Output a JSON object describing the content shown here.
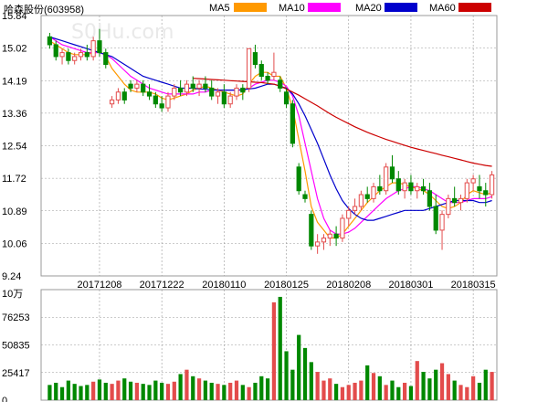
{
  "header": {
    "stock_name": "哈森股份",
    "stock_code": "(603958)",
    "watermark": "S0Hu.com"
  },
  "legend": [
    {
      "label": "MA5",
      "color": "#ff9900"
    },
    {
      "label": "MA10",
      "color": "#ff00ff"
    },
    {
      "label": "MA20",
      "color": "#0000cc"
    },
    {
      "label": "MA60",
      "color": "#cc0000"
    }
  ],
  "colors": {
    "up": "#e34c4c",
    "down": "#008800",
    "grid": "#999999"
  },
  "chart_data": [
    {
      "type": "candlestick",
      "title": "哈森股份(603958)",
      "y_ticks": [
        "15.84",
        "15.02",
        "14.19",
        "13.36",
        "12.54",
        "11.72",
        "10.89",
        "10.06",
        "9.24"
      ],
      "ylim": [
        9.24,
        15.84
      ],
      "x_labels": [
        "20171208",
        "20171222",
        "20180110",
        "20180125",
        "20180208",
        "20180301",
        "20180315"
      ],
      "x_label_index": [
        8,
        18,
        28,
        38,
        48,
        58,
        68
      ],
      "ohlc": [
        [
          15.3,
          15.4,
          15.0,
          15.1
        ],
        [
          15.1,
          15.2,
          14.7,
          14.8
        ],
        [
          14.8,
          15.0,
          14.6,
          14.9
        ],
        [
          14.9,
          15.0,
          14.6,
          14.7
        ],
        [
          14.7,
          14.9,
          14.6,
          14.8
        ],
        [
          14.8,
          15.0,
          14.7,
          14.9
        ],
        [
          14.9,
          15.1,
          14.7,
          14.8
        ],
        [
          14.8,
          15.3,
          14.7,
          15.2
        ],
        [
          15.2,
          15.5,
          14.8,
          14.9
        ],
        [
          14.9,
          15.0,
          14.5,
          14.6
        ],
        [
          13.6,
          13.8,
          13.5,
          13.7
        ],
        [
          13.7,
          14.0,
          13.6,
          13.9
        ],
        [
          13.9,
          14.0,
          13.6,
          13.7
        ],
        [
          14.1,
          14.2,
          13.9,
          14.0
        ],
        [
          14.0,
          14.2,
          13.9,
          14.1
        ],
        [
          14.1,
          14.2,
          13.8,
          13.9
        ],
        [
          13.9,
          14.1,
          13.7,
          13.8
        ],
        [
          13.8,
          13.9,
          13.5,
          13.6
        ],
        [
          13.6,
          13.8,
          13.4,
          13.5
        ],
        [
          13.5,
          13.9,
          13.4,
          13.8
        ],
        [
          13.8,
          14.1,
          13.7,
          14.0
        ],
        [
          14.0,
          14.2,
          13.8,
          13.9
        ],
        [
          13.9,
          14.2,
          13.8,
          14.1
        ],
        [
          14.1,
          14.3,
          13.9,
          14.0
        ],
        [
          14.0,
          14.2,
          13.8,
          14.1
        ],
        [
          14.1,
          14.3,
          13.9,
          14.0
        ],
        [
          14.0,
          14.2,
          13.7,
          13.8
        ],
        [
          13.8,
          14.0,
          13.6,
          13.9
        ],
        [
          13.9,
          14.1,
          13.5,
          13.6
        ],
        [
          13.6,
          13.9,
          13.5,
          13.8
        ],
        [
          13.8,
          14.1,
          13.7,
          14.0
        ],
        [
          14.0,
          14.1,
          13.7,
          13.9
        ],
        [
          14.0,
          15.0,
          13.9,
          15.0
        ],
        [
          14.9,
          15.1,
          14.5,
          14.6
        ],
        [
          14.6,
          14.7,
          14.2,
          14.3
        ],
        [
          14.3,
          14.4,
          14.1,
          14.2
        ],
        [
          14.3,
          14.9,
          14.2,
          14.4
        ],
        [
          14.2,
          14.3,
          13.9,
          14.0
        ],
        [
          13.9,
          14.0,
          13.5,
          13.6
        ],
        [
          13.6,
          13.7,
          12.5,
          12.6
        ],
        [
          12.0,
          12.1,
          11.3,
          11.4
        ],
        [
          11.3,
          11.4,
          11.1,
          11.2
        ],
        [
          10.8,
          10.9,
          9.9,
          10.0
        ],
        [
          10.0,
          10.3,
          9.8,
          10.1
        ],
        [
          10.1,
          10.3,
          9.9,
          10.2
        ],
        [
          10.2,
          10.4,
          10.0,
          10.3
        ],
        [
          10.3,
          10.5,
          10.0,
          10.2
        ],
        [
          10.2,
          10.8,
          10.1,
          10.7
        ],
        [
          10.7,
          11.0,
          10.5,
          10.9
        ],
        [
          10.9,
          11.2,
          10.8,
          11.0
        ],
        [
          11.0,
          11.4,
          10.9,
          11.3
        ],
        [
          11.3,
          11.5,
          11.1,
          11.2
        ],
        [
          11.2,
          11.6,
          11.1,
          11.5
        ],
        [
          11.5,
          11.8,
          11.3,
          11.4
        ],
        [
          11.4,
          12.1,
          11.3,
          12.0
        ],
        [
          12.0,
          12.3,
          11.6,
          11.7
        ],
        [
          11.7,
          11.9,
          11.3,
          11.4
        ],
        [
          11.4,
          11.7,
          11.2,
          11.6
        ],
        [
          11.6,
          11.8,
          11.3,
          11.4
        ],
        [
          11.4,
          11.6,
          11.2,
          11.5
        ],
        [
          11.5,
          11.7,
          11.3,
          11.4
        ],
        [
          11.4,
          11.6,
          10.9,
          11.0
        ],
        [
          11.0,
          11.3,
          10.3,
          10.4
        ],
        [
          10.4,
          10.9,
          9.9,
          10.8
        ],
        [
          10.8,
          11.3,
          10.7,
          11.2
        ],
        [
          11.2,
          11.5,
          11.0,
          11.1
        ],
        [
          11.1,
          11.3,
          10.9,
          11.2
        ],
        [
          11.2,
          11.7,
          11.1,
          11.6
        ],
        [
          11.6,
          11.8,
          11.4,
          11.7
        ],
        [
          11.5,
          11.8,
          11.2,
          11.4
        ],
        [
          11.4,
          11.6,
          11.0,
          11.3
        ],
        [
          11.3,
          11.9,
          11.2,
          11.8
        ]
      ],
      "ma_lines": [
        {
          "name": "MA5",
          "values": [
            15.2,
            15.1,
            15.0,
            14.9,
            14.85,
            14.85,
            14.85,
            14.9,
            14.95,
            14.8,
            14.5,
            14.3,
            14.1,
            13.95,
            13.9,
            13.9,
            13.9,
            13.85,
            13.75,
            13.7,
            13.75,
            13.8,
            13.85,
            13.95,
            14.0,
            14.05,
            14.0,
            13.95,
            13.9,
            13.85,
            13.8,
            13.85,
            14.1,
            14.3,
            14.4,
            14.4,
            14.3,
            14.3,
            14.0,
            13.5,
            12.7,
            11.9,
            11.0,
            10.6,
            10.4,
            10.2,
            10.2,
            10.3,
            10.5,
            10.7,
            10.9,
            11.1,
            11.25,
            11.4,
            11.5,
            11.6,
            11.6,
            11.55,
            11.5,
            11.45,
            11.4,
            11.3,
            11.15,
            11.0,
            10.95,
            11.0,
            11.1,
            11.3,
            11.4,
            11.35,
            11.3,
            11.35
          ]
        },
        {
          "name": "MA10",
          "values": [
            15.3,
            15.2,
            15.1,
            15.05,
            15.0,
            14.95,
            14.9,
            14.9,
            14.9,
            14.85,
            14.75,
            14.6,
            14.45,
            14.3,
            14.2,
            14.1,
            14.0,
            13.95,
            13.9,
            13.85,
            13.85,
            13.85,
            13.85,
            13.85,
            13.9,
            13.9,
            13.95,
            13.95,
            13.95,
            13.95,
            13.95,
            13.95,
            14.0,
            14.1,
            14.15,
            14.2,
            14.2,
            14.15,
            14.05,
            13.8,
            13.3,
            12.6,
            11.9,
            11.2,
            10.7,
            10.4,
            10.3,
            10.3,
            10.35,
            10.45,
            10.6,
            10.75,
            10.9,
            11.05,
            11.2,
            11.3,
            11.4,
            11.45,
            11.5,
            11.5,
            11.45,
            11.4,
            11.3,
            11.2,
            11.1,
            11.1,
            11.1,
            11.15,
            11.2,
            11.2,
            11.2,
            11.25
          ]
        },
        {
          "name": "MA20",
          "values": [
            15.3,
            15.25,
            15.2,
            15.15,
            15.1,
            15.05,
            15.0,
            14.95,
            14.9,
            14.85,
            14.8,
            14.7,
            14.6,
            14.5,
            14.4,
            14.3,
            14.25,
            14.2,
            14.15,
            14.1,
            14.05,
            14.0,
            14.0,
            14.0,
            13.98,
            13.97,
            13.96,
            13.95,
            13.95,
            13.95,
            13.95,
            13.96,
            13.98,
            14.0,
            14.05,
            14.1,
            14.1,
            14.05,
            14.0,
            13.85,
            13.6,
            13.3,
            12.95,
            12.6,
            12.2,
            11.8,
            11.45,
            11.15,
            10.95,
            10.8,
            10.7,
            10.65,
            10.65,
            10.7,
            10.75,
            10.8,
            10.85,
            10.9,
            10.9,
            10.9,
            10.9,
            10.95,
            11.0,
            11.05,
            11.1,
            11.15,
            11.15,
            11.15,
            11.15,
            11.1,
            11.1,
            11.15
          ]
        },
        {
          "name": "MA60",
          "values": [
            null,
            null,
            null,
            null,
            null,
            null,
            null,
            null,
            null,
            null,
            null,
            null,
            null,
            null,
            null,
            null,
            null,
            null,
            null,
            null,
            null,
            null,
            null,
            14.25,
            14.24,
            14.23,
            14.22,
            14.21,
            14.2,
            14.19,
            14.18,
            14.17,
            14.16,
            14.15,
            14.14,
            14.12,
            14.1,
            14.05,
            13.98,
            13.9,
            13.82,
            13.73,
            13.64,
            13.55,
            13.45,
            13.35,
            13.26,
            13.18,
            13.1,
            13.02,
            12.95,
            12.88,
            12.82,
            12.76,
            12.7,
            12.65,
            12.6,
            12.55,
            12.5,
            12.46,
            12.42,
            12.38,
            12.34,
            12.3,
            12.26,
            12.22,
            12.18,
            12.14,
            12.1,
            12.07,
            12.04,
            12.02
          ]
        }
      ]
    },
    {
      "type": "bar",
      "title": "10万",
      "y_ticks": [
        "76253",
        "50835",
        "25417",
        "0"
      ],
      "ylim": [
        0,
        101670
      ],
      "unit": "10万",
      "values": [
        14000,
        16000,
        12000,
        18000,
        15000,
        13000,
        14000,
        17000,
        19000,
        16000,
        15000,
        18000,
        20000,
        17000,
        16000,
        15000,
        14000,
        18000,
        16000,
        15000,
        17000,
        24000,
        28000,
        22000,
        20000,
        18000,
        16000,
        15000,
        14000,
        16000,
        18000,
        14000,
        12000,
        16000,
        22000,
        20000,
        90000,
        95000,
        45000,
        28000,
        60000,
        48000,
        35000,
        26000,
        18000,
        20000,
        15000,
        12000,
        14000,
        16000,
        18000,
        32000,
        25000,
        22000,
        14000,
        18000,
        12000,
        16000,
        13000,
        36000,
        26000,
        20000,
        28000,
        34000,
        24000,
        18000,
        14000,
        12000,
        22000,
        16000,
        28000,
        26000
      ],
      "up_flags": [
        false,
        false,
        false,
        false,
        false,
        false,
        false,
        true,
        false,
        false,
        true,
        true,
        false,
        false,
        true,
        false,
        false,
        false,
        false,
        true,
        true,
        false,
        true,
        false,
        true,
        false,
        false,
        true,
        false,
        true,
        true,
        false,
        true,
        false,
        false,
        false,
        true,
        false,
        false,
        false,
        false,
        false,
        false,
        true,
        true,
        true,
        false,
        true,
        true,
        true,
        true,
        false,
        true,
        false,
        true,
        false,
        false,
        true,
        false,
        true,
        false,
        false,
        false,
        true,
        true,
        false,
        true,
        true,
        true,
        false,
        false,
        true
      ]
    }
  ]
}
